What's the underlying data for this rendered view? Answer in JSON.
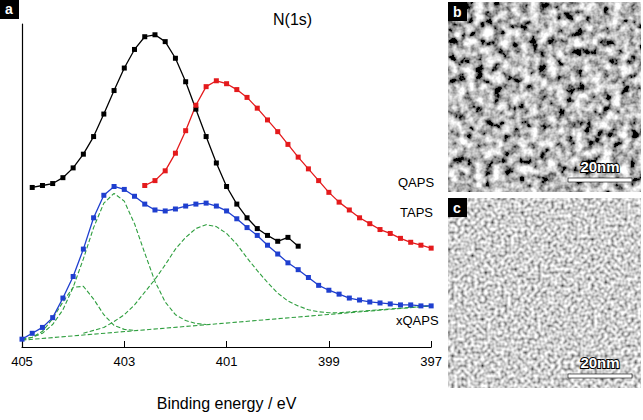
{
  "chart_data": {
    "type": "line",
    "panel": "a",
    "title": "N(1s)",
    "x_label": "Binding energy / eV",
    "xlim": [
      405,
      397
    ],
    "xticks": [
      405,
      403,
      401,
      399,
      397
    ],
    "ylim": [
      0,
      330
    ],
    "tick_labels": "x",
    "grid": false,
    "series": [
      {
        "name": "QAPS",
        "color": "#000000",
        "marker": "square",
        "line_style": "solid",
        "x": [
          404.8,
          404.6,
          404.4,
          404.2,
          404.0,
          403.8,
          403.6,
          403.4,
          403.2,
          403.0,
          402.8,
          402.6,
          402.4,
          402.2,
          402.0,
          401.8,
          401.6,
          401.4,
          401.2,
          401.0,
          400.8,
          400.6,
          400.4,
          400.2,
          400.0,
          399.8,
          399.6
        ],
        "values": [
          163,
          165,
          167,
          173,
          183,
          197,
          215,
          238,
          262,
          285,
          304,
          317,
          319,
          312,
          295,
          271,
          243,
          215,
          188,
          164,
          146,
          132,
          121,
          114,
          108,
          112,
          103
        ]
      },
      {
        "name": "TAPS",
        "color": "#e41a1c",
        "marker": "square",
        "line_style": "solid",
        "x": [
          402.6,
          402.4,
          402.2,
          402.0,
          401.8,
          401.6,
          401.4,
          401.2,
          401.0,
          400.8,
          400.6,
          400.4,
          400.2,
          400.0,
          399.8,
          399.6,
          399.4,
          399.2,
          399.0,
          398.8,
          398.6,
          398.4,
          398.2,
          398.0,
          397.8,
          397.6,
          397.4,
          397.2,
          397.0
        ],
        "values": [
          165,
          170,
          180,
          198,
          221,
          247,
          266,
          272,
          269,
          263,
          255,
          244,
          232,
          220,
          207,
          194,
          182,
          170,
          158,
          148,
          140,
          132,
          126,
          120,
          116,
          111,
          107,
          104,
          101
        ]
      },
      {
        "name": "xQAPS",
        "color": "#1f3fcf",
        "marker": "square",
        "line_style": "solid",
        "x": [
          405.0,
          404.8,
          404.6,
          404.4,
          404.2,
          404.0,
          403.8,
          403.6,
          403.4,
          403.2,
          403.0,
          402.8,
          402.6,
          402.4,
          402.2,
          402.0,
          401.8,
          401.6,
          401.4,
          401.2,
          401.0,
          400.8,
          400.6,
          400.4,
          400.2,
          400.0,
          399.8,
          399.6,
          399.4,
          399.2,
          399.0,
          398.8,
          398.6,
          398.4,
          398.2,
          398.0,
          397.8,
          397.6,
          397.4,
          397.2,
          397.0
        ],
        "values": [
          8,
          14,
          20,
          30,
          50,
          72,
          100,
          132,
          155,
          164,
          161,
          154,
          146,
          140,
          139,
          141,
          144,
          146,
          147,
          144,
          139,
          131,
          122,
          114,
          104,
          95,
          86,
          79,
          71,
          63,
          58,
          54,
          50,
          48,
          46,
          45,
          44,
          43,
          43,
          42,
          42
        ]
      },
      {
        "color": "#2e9e3e",
        "marker": "none",
        "line_style": "dashed",
        "x": [
          405.0,
          404.8,
          404.6,
          404.4,
          404.2,
          404.0,
          403.8,
          403.6,
          403.4,
          403.2,
          403.0,
          402.8,
          402.6,
          402.4,
          402.2,
          402.0,
          401.8,
          401.6,
          401.4
        ],
        "values": [
          8,
          10,
          14,
          23,
          38,
          61,
          90,
          122,
          147,
          157,
          149,
          126,
          96,
          67,
          46,
          33,
          27,
          24,
          23
        ]
      },
      {
        "color": "#2e9e3e",
        "marker": "none",
        "line_style": "dashed",
        "x": [
          403.8,
          403.6,
          403.4,
          403.2,
          403.0,
          402.8,
          402.6,
          402.4,
          402.2,
          402.0,
          401.8,
          401.6,
          401.4,
          401.2,
          401.0,
          400.8,
          400.6,
          400.4,
          400.2,
          400.0,
          399.8,
          399.6,
          399.4,
          399.2,
          399.0,
          398.8,
          397.0
        ],
        "values": [
          14,
          17,
          20,
          26,
          33,
          43,
          56,
          69,
          84,
          100,
          112,
          121,
          125,
          123,
          116,
          105,
          91,
          78,
          66,
          55,
          47,
          42,
          38,
          36,
          35,
          35,
          42
        ]
      },
      {
        "color": "#2e9e3e",
        "marker": "none",
        "line_style": "dashed",
        "x": [
          405.0,
          404.8,
          404.6,
          404.4,
          404.2,
          404.0,
          403.8,
          403.6,
          403.4,
          403.2,
          403.0,
          402.8
        ],
        "values": [
          7,
          10,
          16,
          29,
          46,
          61,
          62,
          49,
          33,
          22,
          18,
          17
        ]
      },
      {
        "color": "#2e9e3e",
        "marker": "none",
        "line_style": "dashed",
        "x": [
          405,
          397
        ],
        "values": [
          7,
          42
        ]
      }
    ]
  },
  "images": [
    {
      "panel": "b",
      "scale_bar": "20nm"
    },
    {
      "panel": "c",
      "scale_bar": "20nm"
    }
  ]
}
